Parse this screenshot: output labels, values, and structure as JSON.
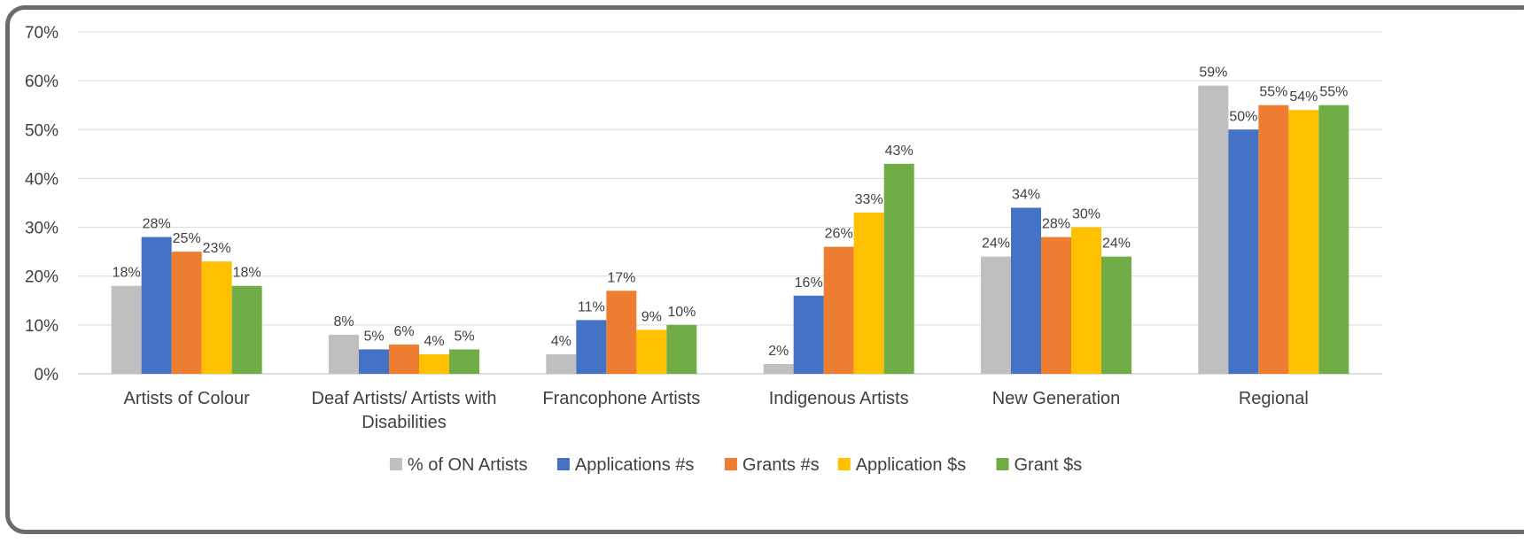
{
  "chart_data": {
    "type": "bar",
    "categories": [
      "Artists of Colour",
      "Deaf Artists/ Artists with Disabilities",
      "Francophone Artists",
      "Indigenous Artists",
      "New Generation",
      "Regional"
    ],
    "series": [
      {
        "name": "% of ON Artists",
        "color": "#BFBFBF",
        "values": [
          18,
          8,
          4,
          2,
          24,
          59
        ]
      },
      {
        "name": "Applications #s",
        "color": "#4472C4",
        "values": [
          28,
          5,
          11,
          16,
          34,
          50
        ]
      },
      {
        "name": "Grants #s",
        "color": "#ED7D31",
        "values": [
          25,
          6,
          17,
          26,
          28,
          55
        ]
      },
      {
        "name": "Application $s",
        "color": "#FFC000",
        "values": [
          23,
          4,
          9,
          33,
          30,
          54
        ]
      },
      {
        "name": "Grant $s",
        "color": "#70AD47",
        "values": [
          18,
          5,
          10,
          43,
          24,
          55
        ]
      }
    ],
    "data_labels": [
      [
        "18%",
        "8%",
        "4%",
        "2%",
        "24%",
        "59%"
      ],
      [
        "28%",
        "5%",
        "11%",
        "16%",
        "34%",
        "50%"
      ],
      [
        "25%",
        "6%",
        "17%",
        "26%",
        "28%",
        "55%"
      ],
      [
        "23%",
        "4%",
        "9%",
        "33%",
        "30%",
        "54%"
      ],
      [
        "18%",
        "5%",
        "10%",
        "43%",
        "24%",
        "55%"
      ]
    ],
    "ylim": [
      0,
      70
    ],
    "yticks": [
      "0%",
      "10%",
      "20%",
      "30%",
      "40%",
      "50%",
      "60%",
      "70%"
    ],
    "grid": true,
    "legend": "bottom",
    "title": "",
    "xlabel": "",
    "ylabel": ""
  }
}
